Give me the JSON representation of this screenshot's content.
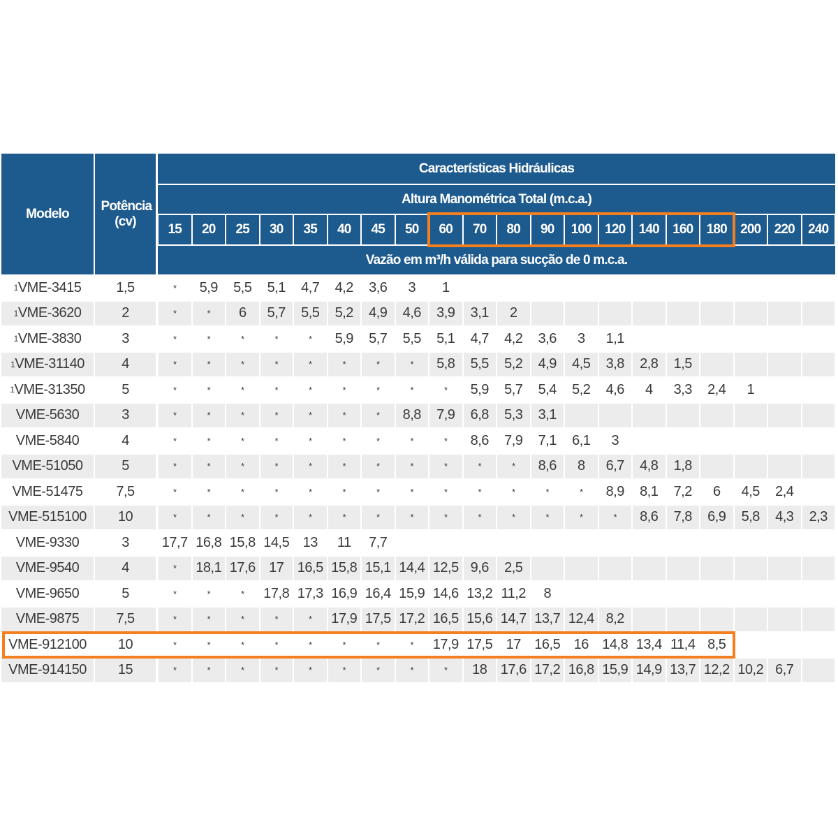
{
  "table": {
    "title": "Características Hidráulicas",
    "subtitle": "Altura Manométrica Total (m.c.a.)",
    "flow_note": "Vazão em m³/h válida para sucção de 0 m.c.a.",
    "col_model": "Modelo",
    "col_power": "Potência (cv)",
    "heights": [
      "15",
      "20",
      "25",
      "30",
      "35",
      "40",
      "45",
      "50",
      "60",
      "70",
      "80",
      "90",
      "100",
      "120",
      "140",
      "160",
      "180",
      "200",
      "220",
      "240"
    ],
    "rows": [
      {
        "note": "1",
        "model": "VME-3415",
        "power": "1,5",
        "values": [
          "*",
          "5,9",
          "5,5",
          "5,1",
          "4,7",
          "4,2",
          "3,6",
          "3",
          "1"
        ]
      },
      {
        "note": "1",
        "model": "VME-3620",
        "power": "2",
        "values": [
          "*",
          "*",
          "6",
          "5,7",
          "5,5",
          "5,2",
          "4,9",
          "4,6",
          "3,9",
          "3,1",
          "2"
        ]
      },
      {
        "note": "1",
        "model": "VME-3830",
        "power": "3",
        "values": [
          "*",
          "*",
          "*",
          "*",
          "*",
          "5,9",
          "5,7",
          "5,5",
          "5,1",
          "4,7",
          "4,2",
          "3,6",
          "3",
          "1,1"
        ]
      },
      {
        "note": "1",
        "model": "VME-31140",
        "power": "4",
        "values": [
          "*",
          "*",
          "*",
          "*",
          "*",
          "*",
          "*",
          "*",
          "5,8",
          "5,5",
          "5,2",
          "4,9",
          "4,5",
          "3,8",
          "2,8",
          "1,5"
        ]
      },
      {
        "note": "1",
        "model": "VME-31350",
        "power": "5",
        "values": [
          "*",
          "*",
          "*",
          "*",
          "*",
          "*",
          "*",
          "*",
          "*",
          "5,9",
          "5,7",
          "5,4",
          "5,2",
          "4,6",
          "4",
          "3,3",
          "2,4",
          "1"
        ]
      },
      {
        "model": "VME-5630",
        "power": "3",
        "values": [
          "*",
          "*",
          "*",
          "*",
          "*",
          "*",
          "*",
          "8,8",
          "7,9",
          "6,8",
          "5,3",
          "3,1"
        ]
      },
      {
        "model": "VME-5840",
        "power": "4",
        "values": [
          "*",
          "*",
          "*",
          "*",
          "*",
          "*",
          "*",
          "*",
          "*",
          "8,6",
          "7,9",
          "7,1",
          "6,1",
          "3"
        ]
      },
      {
        "model": "VME-51050",
        "power": "5",
        "values": [
          "*",
          "*",
          "*",
          "*",
          "*",
          "*",
          "*",
          "*",
          "*",
          "*",
          "*",
          "8,6",
          "8",
          "6,7",
          "4,8",
          "1,8"
        ]
      },
      {
        "model": "VME-51475",
        "power": "7,5",
        "values": [
          "*",
          "*",
          "*",
          "*",
          "*",
          "*",
          "*",
          "*",
          "*",
          "*",
          "*",
          "*",
          "*",
          "8,9",
          "8,1",
          "7,2",
          "6",
          "4,5",
          "2,4"
        ]
      },
      {
        "model": "VME-515100",
        "power": "10",
        "values": [
          "*",
          "*",
          "*",
          "*",
          "*",
          "*",
          "*",
          "*",
          "*",
          "*",
          "*",
          "*",
          "*",
          "*",
          "8,6",
          "7,8",
          "6,9",
          "5,8",
          "4,3",
          "2,3"
        ]
      },
      {
        "model": "VME-9330",
        "power": "3",
        "values": [
          "17,7",
          "16,8",
          "15,8",
          "14,5",
          "13",
          "11",
          "7,7"
        ]
      },
      {
        "model": "VME-9540",
        "power": "4",
        "values": [
          "*",
          "18,1",
          "17,6",
          "17",
          "16,5",
          "15,8",
          "15,1",
          "14,4",
          "12,5",
          "9,6",
          "2,5"
        ]
      },
      {
        "model": "VME-9650",
        "power": "5",
        "values": [
          "*",
          "*",
          "*",
          "17,8",
          "17,3",
          "16,9",
          "16,4",
          "15,9",
          "14,6",
          "13,2",
          "11,2",
          "8"
        ]
      },
      {
        "model": "VME-9875",
        "power": "7,5",
        "values": [
          "*",
          "*",
          "*",
          "*",
          "*",
          "17,9",
          "17,5",
          "17,2",
          "16,5",
          "15,6",
          "14,7",
          "13,7",
          "12,4",
          "8,2"
        ]
      },
      {
        "model": "VME-912100",
        "power": "10",
        "values": [
          "*",
          "*",
          "*",
          "*",
          "*",
          "*",
          "*",
          "*",
          "17,9",
          "17,5",
          "17",
          "16,5",
          "16",
          "14,8",
          "13,4",
          "11,4",
          "8,5"
        ]
      },
      {
        "model": "VME-914150",
        "power": "15",
        "values": [
          "*",
          "*",
          "*",
          "*",
          "*",
          "*",
          "*",
          "*",
          "*",
          "18",
          "17,6",
          "17,2",
          "16,8",
          "15,9",
          "14,9",
          "13,7",
          "12,2",
          "10,2",
          "6,7"
        ]
      }
    ]
  }
}
